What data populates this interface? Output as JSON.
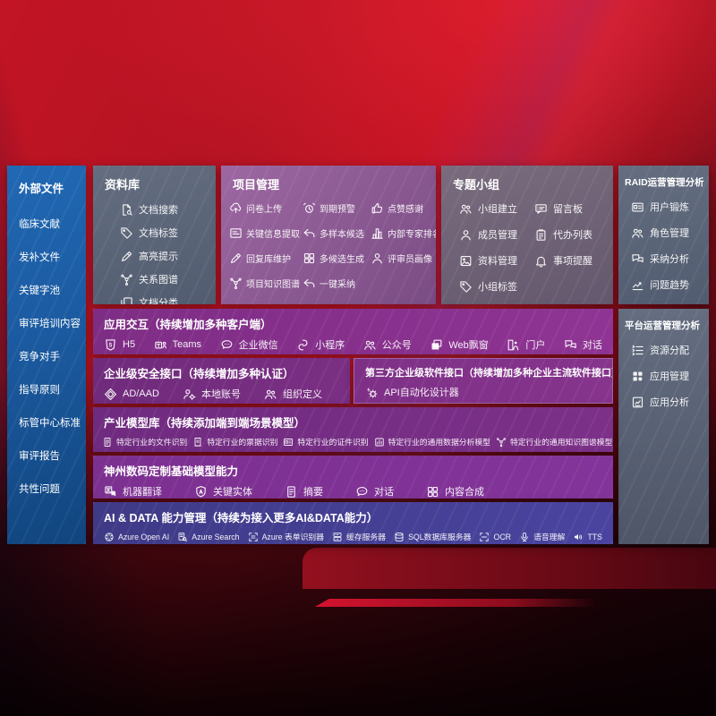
{
  "colors": {
    "bg-red": "#c21424",
    "bg-dark": "#2b050c",
    "sidebar-a": "#2168b4",
    "sidebar-b": "#11457e",
    "slate-a": "#646e80",
    "slate-b": "#525c70",
    "project-a": "#9d68a2",
    "project-b": "#7a4c84",
    "group-a": "#7a6c7e",
    "group-b": "#64586e",
    "app-a": "#7e2d85",
    "app-b": "#8f3494",
    "sec": "#702b7c",
    "third": "#7e3087",
    "industry": "#6f2b80",
    "dc": "#7c3090",
    "ai-a": "#3f3a86",
    "ai-b": "#4a44a0"
  },
  "sidebar": {
    "title": "外部文件",
    "items": [
      "临床文献",
      "发补文件",
      "关键字池",
      "审评培训内容",
      "竞争对手",
      "指导原则",
      "标管中心标准",
      "审评报告",
      "共性问题"
    ]
  },
  "panels": [
    {
      "id": "data-library",
      "title": "资料库",
      "items": [
        {
          "icon": "doc-search-icon",
          "label": "文档搜索"
        },
        {
          "icon": "tag-icon",
          "label": "文档标签"
        },
        {
          "icon": "highlight-pen-icon",
          "label": "高亮提示"
        },
        {
          "icon": "relation-graph-icon",
          "label": "关系图谱"
        },
        {
          "icon": "doc-category-icon",
          "label": "文档分类"
        }
      ]
    },
    {
      "id": "project-management",
      "title": "项目管理",
      "items": [
        {
          "icon": "cloud-upload-icon",
          "label": "问卷上传"
        },
        {
          "icon": "alarm-icon",
          "label": "到期预警"
        },
        {
          "icon": "thumb-up-icon",
          "label": "点赞感谢"
        },
        {
          "icon": "key-info-extract-icon",
          "label": "关键信息提取"
        },
        {
          "icon": "reply-arrow-icon",
          "label": "多样本候选"
        },
        {
          "icon": "ranking-icon",
          "label": "内部专家排名"
        },
        {
          "icon": "edit-pen-icon",
          "label": "回复库维护"
        },
        {
          "icon": "multi-generate-icon",
          "label": "多候选生成"
        },
        {
          "icon": "reviewer-portrait-icon",
          "label": "评审员画像"
        },
        {
          "icon": "knowledge-graph-icon",
          "label": "项目知识图谱"
        },
        {
          "icon": "adopt-arrow-icon",
          "label": "一键采纳"
        }
      ]
    },
    {
      "id": "topic-group",
      "title": "专题小组",
      "items": [
        {
          "icon": "group-create-icon",
          "label": "小组建立"
        },
        {
          "icon": "message-board-icon",
          "label": "留言板"
        },
        {
          "icon": "member-manage-icon",
          "label": "成员管理"
        },
        {
          "icon": "todo-list-icon",
          "label": "代办列表"
        },
        {
          "icon": "file-manage-icon",
          "label": "资料管理"
        },
        {
          "icon": "reminder-bell-icon",
          "label": "事项提醒"
        },
        {
          "icon": "group-tag-icon",
          "label": "小组标签"
        }
      ]
    },
    {
      "id": "raid-analysis",
      "title": "RAID运营管理分析",
      "items": [
        {
          "icon": "user-card-icon",
          "label": "用户锻炼"
        },
        {
          "icon": "role-manage-icon",
          "label": "角色管理"
        },
        {
          "icon": "adoption-analysis-icon",
          "label": "采纳分析"
        },
        {
          "icon": "issue-trend-icon",
          "label": "问题趋势"
        }
      ]
    },
    {
      "id": "platform-analysis",
      "title": "平台运营管理分析",
      "items": [
        {
          "icon": "resource-allocation-icon",
          "label": "资源分配"
        },
        {
          "icon": "app-manage-icon",
          "label": "应用管理"
        },
        {
          "icon": "app-analysis-icon",
          "label": "应用分析"
        }
      ]
    }
  ],
  "rows": [
    {
      "id": "app-interaction",
      "title": "应用交互（持续增加多种客户端）",
      "items": [
        {
          "icon": "h5-icon",
          "label": "H5"
        },
        {
          "icon": "teams-icon",
          "label": "Teams"
        },
        {
          "icon": "wechat-work-icon",
          "label": "企业微信"
        },
        {
          "icon": "mini-program-icon",
          "label": "小程序"
        },
        {
          "icon": "official-account-icon",
          "label": "公众号"
        },
        {
          "icon": "web-window-icon",
          "label": "Web飘窗"
        },
        {
          "icon": "portal-icon",
          "label": "门户"
        },
        {
          "icon": "dialog-icon",
          "label": "对话"
        }
      ]
    },
    {
      "id": "enterprise-security",
      "title": "企业级安全接口（持续增加多种认证）",
      "items": [
        {
          "icon": "ad-aad-icon",
          "label": "AD/AAD"
        },
        {
          "icon": "local-account-icon",
          "label": "本地账号"
        },
        {
          "icon": "org-define-icon",
          "label": "组织定义"
        }
      ]
    },
    {
      "id": "third-party",
      "title": "第三方企业级软件接口（持续增加多种企业主流软件接口）",
      "items": [
        {
          "icon": "api-designer-icon",
          "label": "API自动化设计器"
        }
      ]
    },
    {
      "id": "industry-models",
      "title": "产业模型库（持续添加端到端场景模型）",
      "items": [
        {
          "icon": "file-recognition-icon",
          "label": "特定行业的文件识别"
        },
        {
          "icon": "receipt-recognition-icon",
          "label": "特定行业的票据识别"
        },
        {
          "icon": "id-recognition-icon",
          "label": "特定行业的证件识别"
        },
        {
          "icon": "data-analysis-model-icon",
          "label": "特定行业的通用数据分析模型"
        },
        {
          "icon": "knowledge-graph-model-icon",
          "label": "特定行业的通用知识图谱模型"
        }
      ]
    },
    {
      "id": "dc-base-models",
      "title": "神州数码定制基础模型能力",
      "items": [
        {
          "icon": "machine-translation-icon",
          "label": "机器翻译"
        },
        {
          "icon": "key-entity-icon",
          "label": "关键实体"
        },
        {
          "icon": "summary-icon",
          "label": "摘要"
        },
        {
          "icon": "chat-icon",
          "label": "对话"
        },
        {
          "icon": "content-synthesis-icon",
          "label": "内容合成"
        }
      ]
    },
    {
      "id": "ai-data",
      "title": "AI & DATA 能力管理（持续为接入更多AI&DATA能力）",
      "items": [
        {
          "icon": "azure-openai-icon",
          "label": "Azure Open AI"
        },
        {
          "icon": "azure-search-icon",
          "label": "Azure Search"
        },
        {
          "icon": "azure-form-icon",
          "label": "Azure 表单识别器"
        },
        {
          "icon": "cache-server-icon",
          "label": "缓存服务器"
        },
        {
          "icon": "sql-database-icon",
          "label": "SQL数据库服务器"
        },
        {
          "icon": "ocr-icon",
          "label": "OCR"
        },
        {
          "icon": "speech-understanding-icon",
          "label": "语音理解"
        },
        {
          "icon": "tts-icon",
          "label": "TTS"
        }
      ]
    }
  ]
}
